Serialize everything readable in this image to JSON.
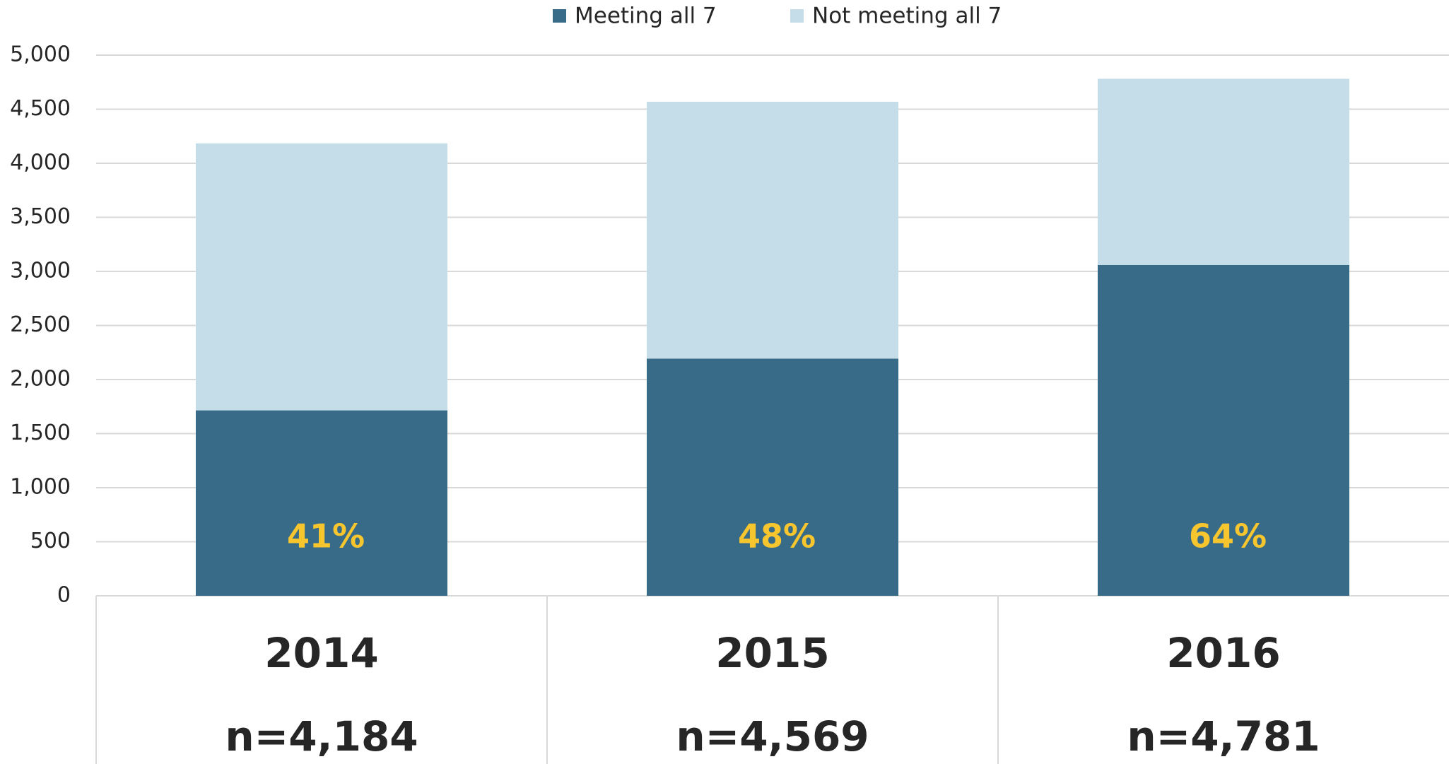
{
  "chart_data": {
    "type": "stacked_bar",
    "categories": [
      "2014",
      "2015",
      "2016"
    ],
    "n_labels": [
      "n=4,184",
      "n=4,569",
      "n=4,781"
    ],
    "series": [
      {
        "name": "Meeting all 7",
        "color": "#376b87",
        "values": [
          1715,
          2193,
          3060
        ]
      },
      {
        "name": "Not meeting all 7",
        "color": "#c5dde8",
        "values": [
          2469,
          2376,
          1721
        ]
      }
    ],
    "annotations": [
      "41%",
      "48%",
      "64%"
    ],
    "annotation_color": "#f7c62f",
    "ylim": [
      0,
      5000
    ],
    "yticks": [
      0,
      500,
      {
        "value": 1000,
        "label": "1,000"
      },
      {
        "value": 1500,
        "label": "1,500"
      },
      {
        "value": 2000,
        "label": "2,000"
      },
      {
        "value": 2500,
        "label": "2,500"
      },
      {
        "value": 3000,
        "label": "3,000"
      },
      {
        "value": 3500,
        "label": "3,500"
      },
      {
        "value": 4000,
        "label": "4,000"
      },
      {
        "value": 4500,
        "label": "4,500"
      },
      {
        "value": 5000,
        "label": "5,000"
      }
    ],
    "grid": true,
    "legend": "top"
  }
}
